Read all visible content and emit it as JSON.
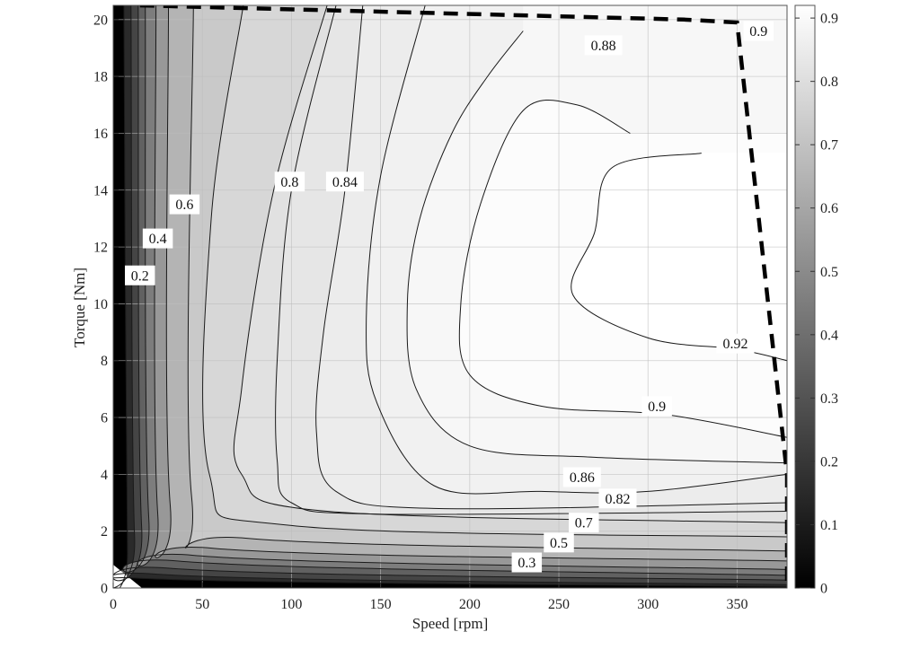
{
  "chart_data": {
    "type": "heatmap",
    "subtype": "filled-contour",
    "colormap": "gray",
    "title": "",
    "xlabel": "Speed [rpm]",
    "ylabel": "Torque [Nm]",
    "xlim": [
      0,
      378
    ],
    "ylim": [
      0,
      20.5
    ],
    "x_ticks": [
      0,
      50,
      100,
      150,
      200,
      250,
      300,
      350
    ],
    "y_ticks": [
      0,
      2,
      4,
      6,
      8,
      10,
      12,
      14,
      16,
      18,
      20
    ],
    "grid": true,
    "colorbar": {
      "range": [
        0,
        0.92
      ],
      "ticks": [
        0,
        0.1,
        0.2,
        0.3,
        0.4,
        0.5,
        0.6,
        0.7,
        0.8,
        0.9
      ],
      "labels": [
        "0",
        "0.1",
        "0.2",
        "0.3",
        "0.4",
        "0.5",
        "0.6",
        "0.7",
        "0.8",
        "0.9"
      ]
    },
    "contour_levels": [
      0.1,
      0.2,
      0.3,
      0.4,
      0.5,
      0.6,
      0.7,
      0.75,
      0.8,
      0.82,
      0.84,
      0.86,
      0.88,
      0.9,
      0.92
    ],
    "efficiency_contours": [
      {
        "level": 0.1,
        "x": [
          6,
          8,
          12,
          378
        ],
        "y": [
          20.5,
          1.3,
          0.35,
          0.05
        ]
      },
      {
        "level": 0.2,
        "x": [
          10,
          12,
          22,
          378
        ],
        "y": [
          20.5,
          1.8,
          0.5,
          0.12
        ]
      },
      {
        "level": 0.3,
        "x": [
          14,
          16,
          30,
          378
        ],
        "y": [
          20.5,
          2.1,
          0.7,
          0.28
        ]
      },
      {
        "level": 0.4,
        "x": [
          18,
          20,
          36,
          378
        ],
        "y": [
          20.5,
          2.4,
          0.95,
          0.45
        ]
      },
      {
        "level": 0.5,
        "x": [
          24,
          25,
          45,
          378
        ],
        "y": [
          20.5,
          2.6,
          1.15,
          0.65
        ]
      },
      {
        "level": 0.6,
        "x": [
          31,
          32,
          56,
          378
        ],
        "y": [
          20.5,
          2.9,
          1.4,
          0.95
        ]
      },
      {
        "level": 0.7,
        "x": [
          45,
          44,
          75,
          378
        ],
        "y": [
          20.5,
          3.2,
          1.75,
          1.3
        ]
      },
      {
        "level": 0.75,
        "x": [
          73,
          55,
          54,
          100,
          378
        ],
        "y": [
          20.5,
          13,
          4.0,
          2.2,
          1.8
        ]
      },
      {
        "level": 0.8,
        "x": [
          120,
          90,
          72,
          72,
          120,
          378
        ],
        "y": [
          20.5,
          14,
          7,
          4.0,
          2.7,
          2.3
        ]
      },
      {
        "level": 0.82,
        "x": [
          125,
          100,
          92,
          92,
          100,
          150,
          378
        ],
        "y": [
          20.5,
          14,
          8,
          4.5,
          3.0,
          2.6,
          2.7
        ]
      },
      {
        "level": 0.84,
        "x": [
          140,
          130,
          118,
          114,
          125,
          180,
          378
        ],
        "y": [
          20.5,
          14,
          9,
          5.5,
          3.4,
          2.8,
          3.0
        ]
      },
      {
        "level": 0.86,
        "x": [
          175,
          150,
          142,
          148,
          180,
          240,
          300,
          378
        ],
        "y": [
          20.5,
          14.5,
          9.5,
          6.5,
          3.6,
          3.4,
          3.4,
          4.0
        ]
      },
      {
        "level": 0.88,
        "x": [
          230,
          210,
          190,
          172,
          165,
          170,
          200,
          270,
          378
        ],
        "y": [
          19.6,
          18,
          16,
          13,
          10,
          7,
          5.0,
          4.6,
          4.4
        ]
      },
      {
        "level": 0.9,
        "x": [
          290,
          260,
          230,
          206,
          195,
          200,
          240,
          310,
          378
        ],
        "y": [
          16,
          17,
          16.8,
          13.5,
          10,
          7.5,
          6.4,
          6.1,
          5.3
        ]
      },
      {
        "level": 0.92,
        "x": [
          330,
          280,
          270,
          258,
          300,
          350,
          378
        ],
        "y": [
          15.3,
          14.8,
          12.5,
          10.3,
          8.8,
          8.4,
          8.0
        ]
      }
    ],
    "boundary_line": {
      "style": "dashed",
      "x": [
        15,
        320,
        350,
        378,
        378
      ],
      "y": [
        20.5,
        20.0,
        19.9,
        4.0,
        0.2
      ]
    },
    "annotations": [
      {
        "text": "0.9",
        "x": 362,
        "y": 19.6
      },
      {
        "text": "0.88",
        "x": 275,
        "y": 19.1
      },
      {
        "text": "0.8",
        "x": 99,
        "y": 14.3
      },
      {
        "text": "0.84",
        "x": 130,
        "y": 14.3
      },
      {
        "text": "0.6",
        "x": 40,
        "y": 13.5
      },
      {
        "text": "0.4",
        "x": 25,
        "y": 12.3
      },
      {
        "text": "0.2",
        "x": 15,
        "y": 11.0
      },
      {
        "text": "0.92",
        "x": 349,
        "y": 8.6
      },
      {
        "text": "0.9",
        "x": 305,
        "y": 6.4
      },
      {
        "text": "0.86",
        "x": 263,
        "y": 3.9
      },
      {
        "text": "0.82",
        "x": 283,
        "y": 3.15
      },
      {
        "text": "0.7",
        "x": 264,
        "y": 2.3
      },
      {
        "text": "0.5",
        "x": 250,
        "y": 1.6
      },
      {
        "text": "0.3",
        "x": 232,
        "y": 0.9
      }
    ]
  }
}
